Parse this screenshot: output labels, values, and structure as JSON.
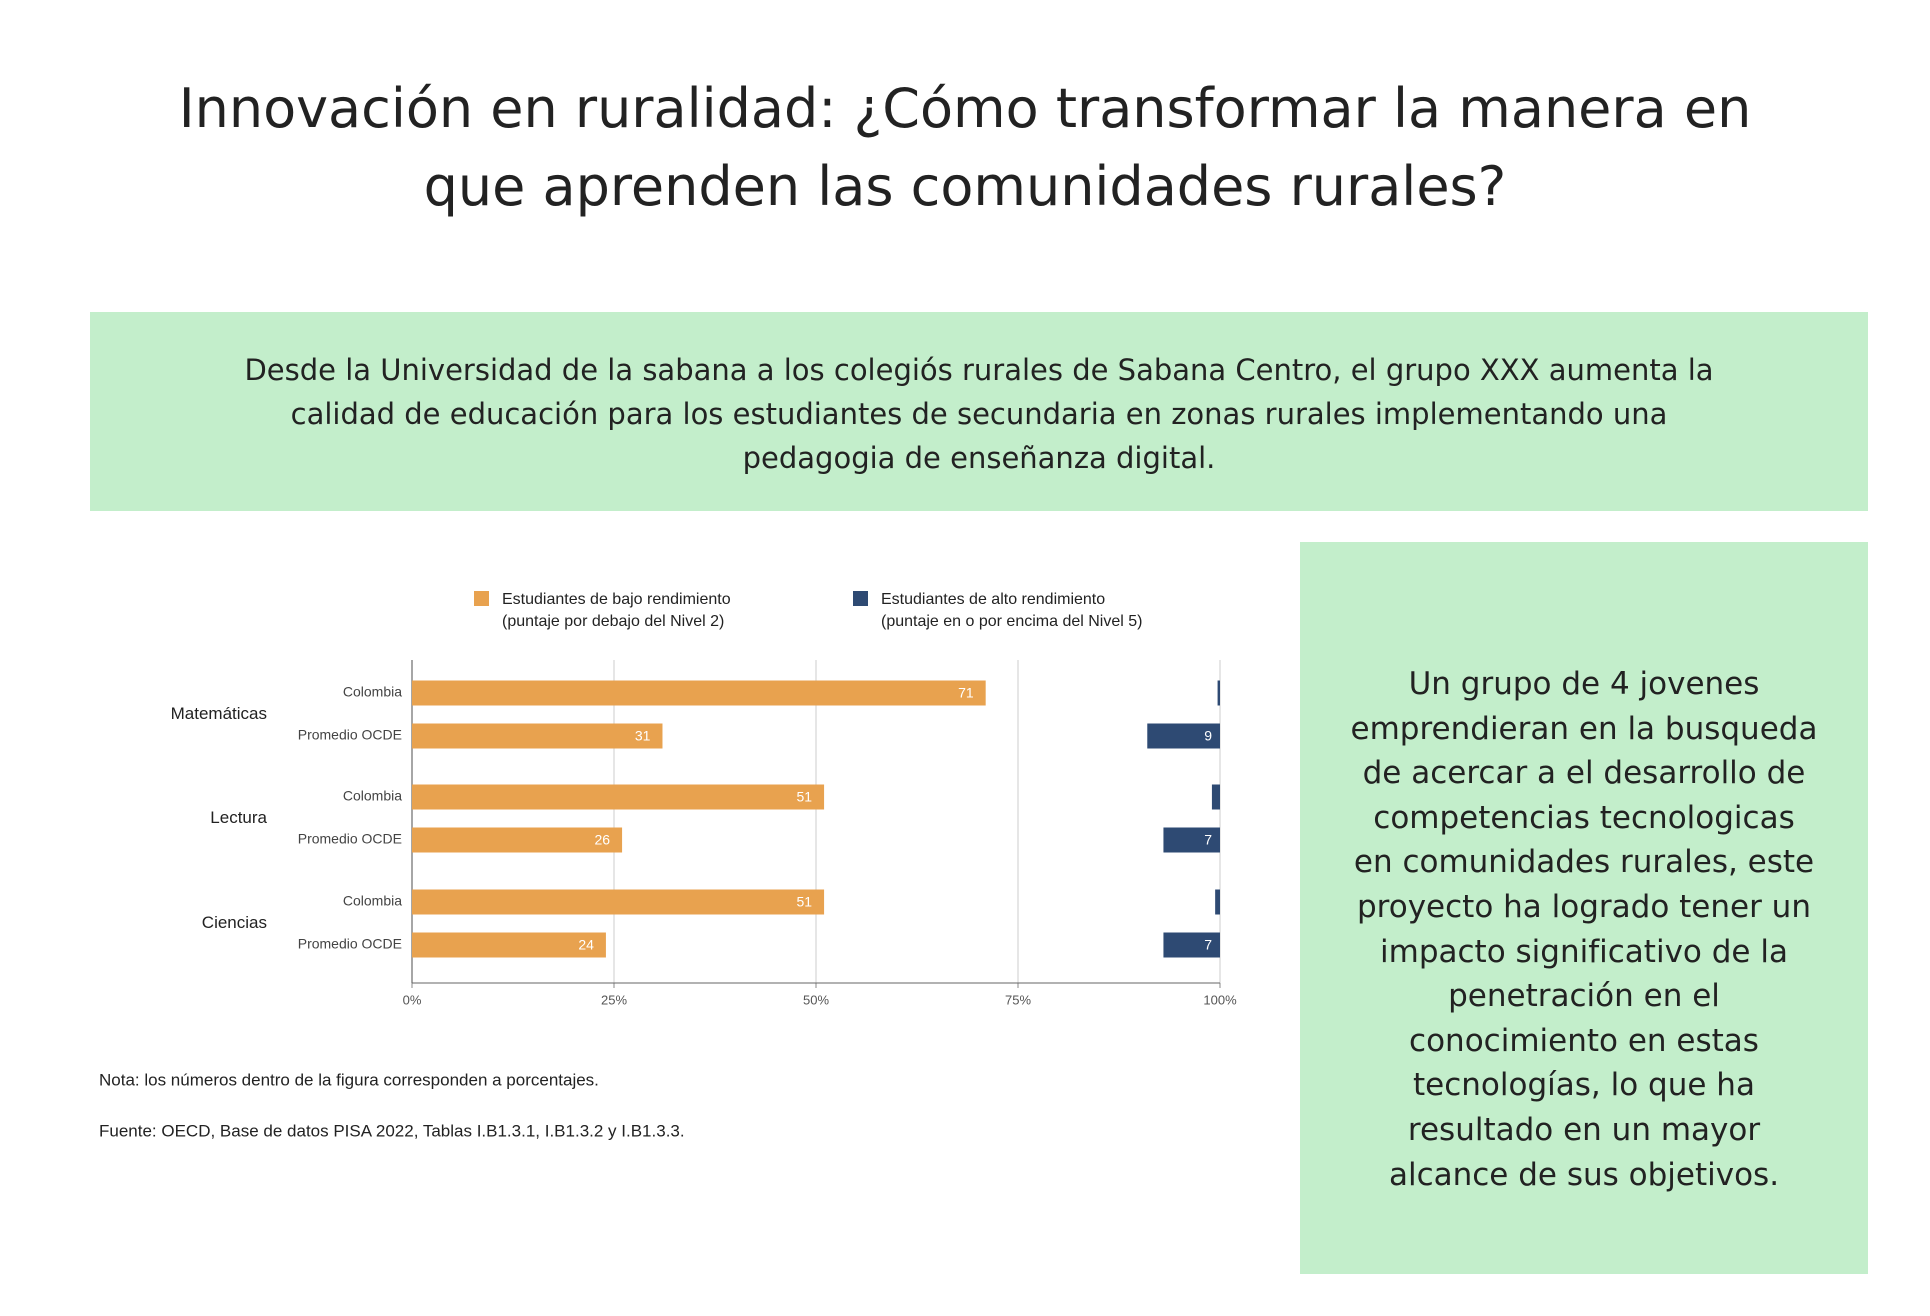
{
  "header": {
    "title": "Innovación en ruralidad: ¿Cómo transformar la manera en que aprenden las comunidades rurales?"
  },
  "intro": {
    "text": "Desde la Universidad de la sabana a los colegiós rurales de Sabana Centro, el grupo XXX aumenta la calidad de educación para los estudiantes de secundaria en zonas rurales implementando una pedagogia de enseñanza digital."
  },
  "side_box": {
    "text": "Un grupo de 4 jovenes emprendieran en la busqueda de acercar a el desarrollo de competencias tecnologicas en comunidades rurales, este proyecto ha logrado tener un impacto significativo de la penetración en el conocimiento en estas tecnologías, lo que ha resultado en un mayor alcance de sus objetivos."
  },
  "chart_data": {
    "type": "bar",
    "orientation": "horizontal",
    "groups": [
      "Matemáticas",
      "Lectura",
      "Ciencias"
    ],
    "categories": [
      "Colombia",
      "Promedio OCDE",
      "Colombia",
      "Promedio OCDE",
      "Colombia",
      "Promedio OCDE"
    ],
    "series": [
      {
        "name": "Estudiantes de bajo rendimiento",
        "description": "(puntaje por debajo del Nivel 2)",
        "color": "#e8a24f",
        "baseline": 0,
        "values": [
          71,
          31,
          51,
          26,
          51,
          24
        ]
      },
      {
        "name": "Estudiantes de alto rendimiento",
        "description": "(puntaje en o por encima del Nivel 5)",
        "color": "#2e4a73",
        "baseline": 100,
        "values": [
          0.3,
          9,
          1,
          7,
          0.6,
          7
        ],
        "value_labels": [
          null,
          "9",
          null,
          "7",
          null,
          "7"
        ]
      }
    ],
    "xlim": [
      0,
      100
    ],
    "xticks": [
      {
        "value": 0,
        "label": "0%"
      },
      {
        "value": 25,
        "label": "25%"
      },
      {
        "value": 50,
        "label": "50%"
      },
      {
        "value": 75,
        "label": "75%"
      },
      {
        "value": 100,
        "label": "100%"
      }
    ],
    "grid": true,
    "notes": [
      "Nota: los números dentro de la figura corresponden a porcentajes.",
      "Fuente: OECD, Base de datos PISA 2022, Tablas I.B1.3.1, I.B1.3.2 y I.B1.3.3."
    ]
  }
}
